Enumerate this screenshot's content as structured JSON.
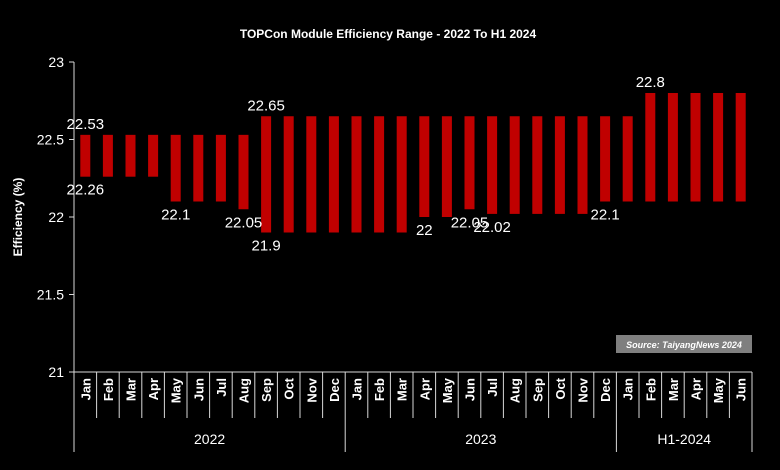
{
  "chart_data": {
    "type": "bar",
    "subtype": "floating-range",
    "title": "TOPCon Module Efficiency Range - 2022 To H1 2024",
    "ylabel": "Efficiency (%)",
    "xlabel": "",
    "ylim": [
      21,
      23
    ],
    "yticks": [
      "21",
      "21.5",
      "22",
      "22.5",
      "23"
    ],
    "grid": false,
    "colors": {
      "bar": "#c00000",
      "background": "#000000",
      "text": "#ffffff"
    },
    "groups": [
      {
        "label": "2022",
        "categories": [
          "Jan",
          "Feb",
          "Mar",
          "Apr",
          "May",
          "Jun",
          "Jul",
          "Aug",
          "Sep",
          "Oct",
          "Nov",
          "Dec"
        ]
      },
      {
        "label": "2023",
        "categories": [
          "Jan",
          "Feb",
          "Mar",
          "Apr",
          "May",
          "Jun",
          "Jul",
          "Aug",
          "Sep",
          "Oct",
          "Nov",
          "Dec"
        ]
      },
      {
        "label": "H1-2024",
        "categories": [
          "Jan",
          "Feb",
          "Mar",
          "Apr",
          "May",
          "Jun"
        ]
      }
    ],
    "low": [
      22.26,
      22.26,
      22.26,
      22.26,
      22.1,
      22.1,
      22.1,
      22.05,
      21.9,
      21.9,
      21.9,
      21.9,
      21.9,
      21.9,
      21.9,
      22.0,
      22.0,
      22.05,
      22.02,
      22.02,
      22.02,
      22.02,
      22.02,
      22.1,
      22.1,
      22.1,
      22.1,
      22.1,
      22.1,
      22.1
    ],
    "high": [
      22.53,
      22.53,
      22.53,
      22.53,
      22.53,
      22.53,
      22.53,
      22.53,
      22.65,
      22.65,
      22.65,
      22.65,
      22.65,
      22.65,
      22.65,
      22.65,
      22.65,
      22.65,
      22.65,
      22.65,
      22.65,
      22.65,
      22.65,
      22.65,
      22.65,
      22.8,
      22.8,
      22.8,
      22.8,
      22.8
    ],
    "data_labels": [
      {
        "index": 0,
        "text": "22.53",
        "pos": "above"
      },
      {
        "index": 0,
        "text": "22.26",
        "pos": "below"
      },
      {
        "index": 4,
        "text": "22.1",
        "pos": "below"
      },
      {
        "index": 7,
        "text": "22.05",
        "pos": "below"
      },
      {
        "index": 8,
        "text": "22.65",
        "pos": "above"
      },
      {
        "index": 8,
        "text": "21.9",
        "pos": "below"
      },
      {
        "index": 15,
        "text": "22",
        "pos": "below"
      },
      {
        "index": 17,
        "text": "22.05",
        "pos": "below"
      },
      {
        "index": 18,
        "text": "22.02",
        "pos": "below"
      },
      {
        "index": 23,
        "text": "22.1",
        "pos": "below"
      },
      {
        "index": 25,
        "text": "22.8",
        "pos": "above"
      }
    ],
    "source": "Source: TaiyangNews 2024"
  }
}
